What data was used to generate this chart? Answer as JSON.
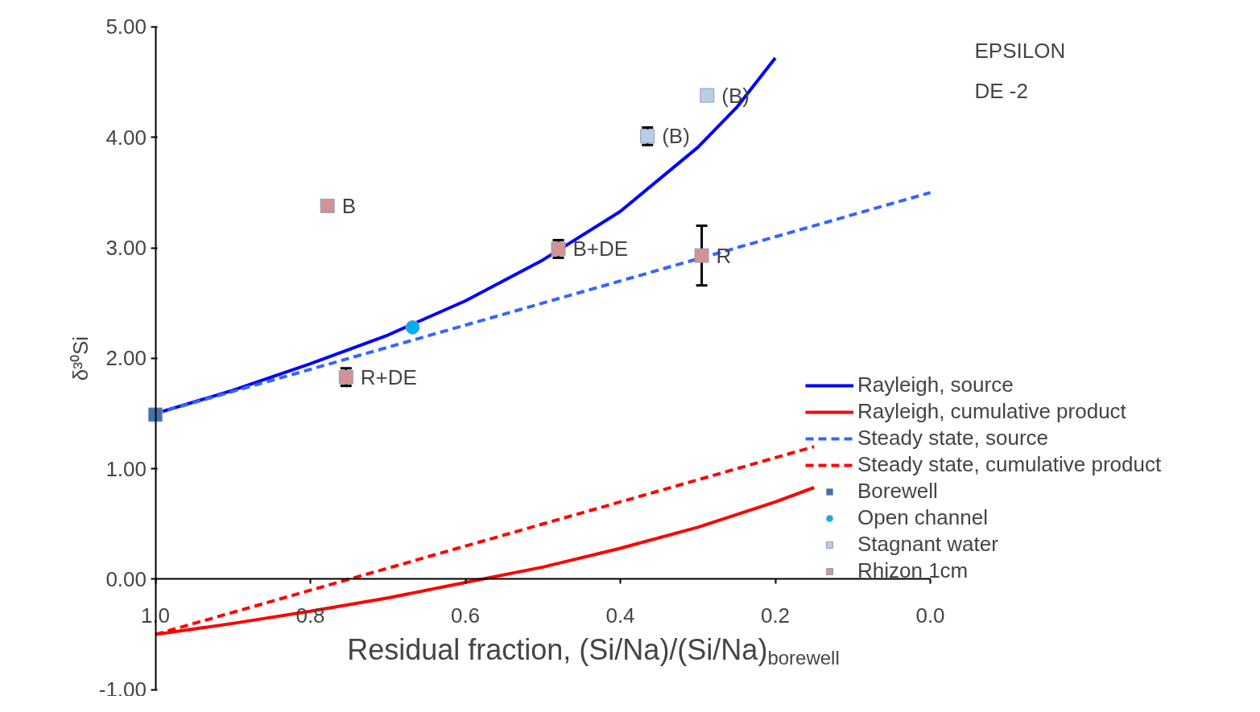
{
  "chart_data": {
    "type": "line",
    "xlabel": "Residual fraction, (Si/Na)/(Si/Na)$_{borewell}$",
    "ylabel": "δ³⁰Si",
    "xlim": [
      1.0,
      0.0
    ],
    "ylim": [
      -1.0,
      5.0
    ],
    "xticks": [
      {
        "value": 1.0,
        "label": "1.0"
      },
      {
        "value": 0.8,
        "label": "0.8"
      },
      {
        "value": 0.6,
        "label": "0.6"
      },
      {
        "value": 0.4,
        "label": "0.4"
      },
      {
        "value": 0.2,
        "label": "0.2"
      },
      {
        "value": 0.0,
        "label": "0.0"
      }
    ],
    "yticks": [
      {
        "value": -1,
        "label": "-1.00"
      },
      {
        "value": 0,
        "label": "0.00"
      },
      {
        "value": 1,
        "label": "1.00"
      },
      {
        "value": 2,
        "label": "2.00"
      },
      {
        "value": 3,
        "label": "3.00"
      },
      {
        "value": 4,
        "label": "4.00"
      },
      {
        "value": 5,
        "label": "5.00"
      }
    ],
    "grid": false,
    "legend": "right",
    "series": [
      {
        "name": "Rayleigh, source",
        "line_style": "solid",
        "color": "#0000ff",
        "x": [
          1.0,
          0.9,
          0.8,
          0.7,
          0.6,
          0.5,
          0.4,
          0.3,
          0.25,
          0.2
        ],
        "values": [
          1.5,
          1.71,
          1.95,
          2.21,
          2.52,
          2.89,
          3.33,
          3.91,
          4.27,
          4.72
        ]
      },
      {
        "name": "Rayleigh, cumulative product",
        "line_style": "solid",
        "color": "#ff0000",
        "x": [
          1.0,
          0.9,
          0.8,
          0.7,
          0.6,
          0.5,
          0.4,
          0.3,
          0.2,
          0.15
        ],
        "values": [
          -0.5,
          -0.4,
          -0.29,
          -0.17,
          -0.03,
          0.11,
          0.28,
          0.47,
          0.7,
          0.83
        ]
      },
      {
        "name": "Steady state, source",
        "line_style": "dashed",
        "color": "#3366ff",
        "x": [
          1.0,
          0.0
        ],
        "values": [
          1.5,
          3.5
        ]
      },
      {
        "name": "Steady state, cumulative product",
        "line_style": "dashed",
        "color": "#ff0000",
        "x": [
          1.0,
          0.15
        ],
        "values": [
          -0.5,
          1.2
        ]
      },
      {
        "name": "Borewell",
        "type": "scatter",
        "marker": "square",
        "color": "#4472a8",
        "x": [
          1.0
        ],
        "values": [
          1.49
        ]
      },
      {
        "name": "Open channel",
        "type": "scatter",
        "marker": "circle",
        "color": "#00b0f0",
        "x": [
          0.668
        ],
        "values": [
          2.28
        ]
      },
      {
        "name": "Stagnant water",
        "type": "scatter",
        "marker": "square",
        "color": "#b9cde4",
        "x": [
          0.365,
          0.288
        ],
        "values": [
          4.01,
          4.38
        ],
        "errors": [
          0.08,
          null
        ]
      },
      {
        "name": "Rhizon 1cm",
        "type": "scatter",
        "marker": "square",
        "color": "#d39393",
        "x": [
          0.778,
          0.754,
          0.48,
          0.295
        ],
        "values": [
          3.38,
          1.83,
          2.99,
          2.93
        ],
        "errors": [
          null,
          0.08,
          0.08,
          0.27
        ]
      }
    ],
    "annotations": [
      "EPSILON",
      "DE -2",
      {
        "text": "B",
        "x": 0.778,
        "y": 3.38
      },
      {
        "text": "R+DE",
        "x": 0.754,
        "y": 1.83
      },
      {
        "text": "B+DE",
        "x": 0.48,
        "y": 2.99
      },
      {
        "text": "R",
        "x": 0.295,
        "y": 2.93
      },
      {
        "text": "(B)",
        "x": 0.365,
        "y": 4.01
      },
      {
        "text": "(B)",
        "x": 0.288,
        "y": 4.38
      }
    ]
  }
}
